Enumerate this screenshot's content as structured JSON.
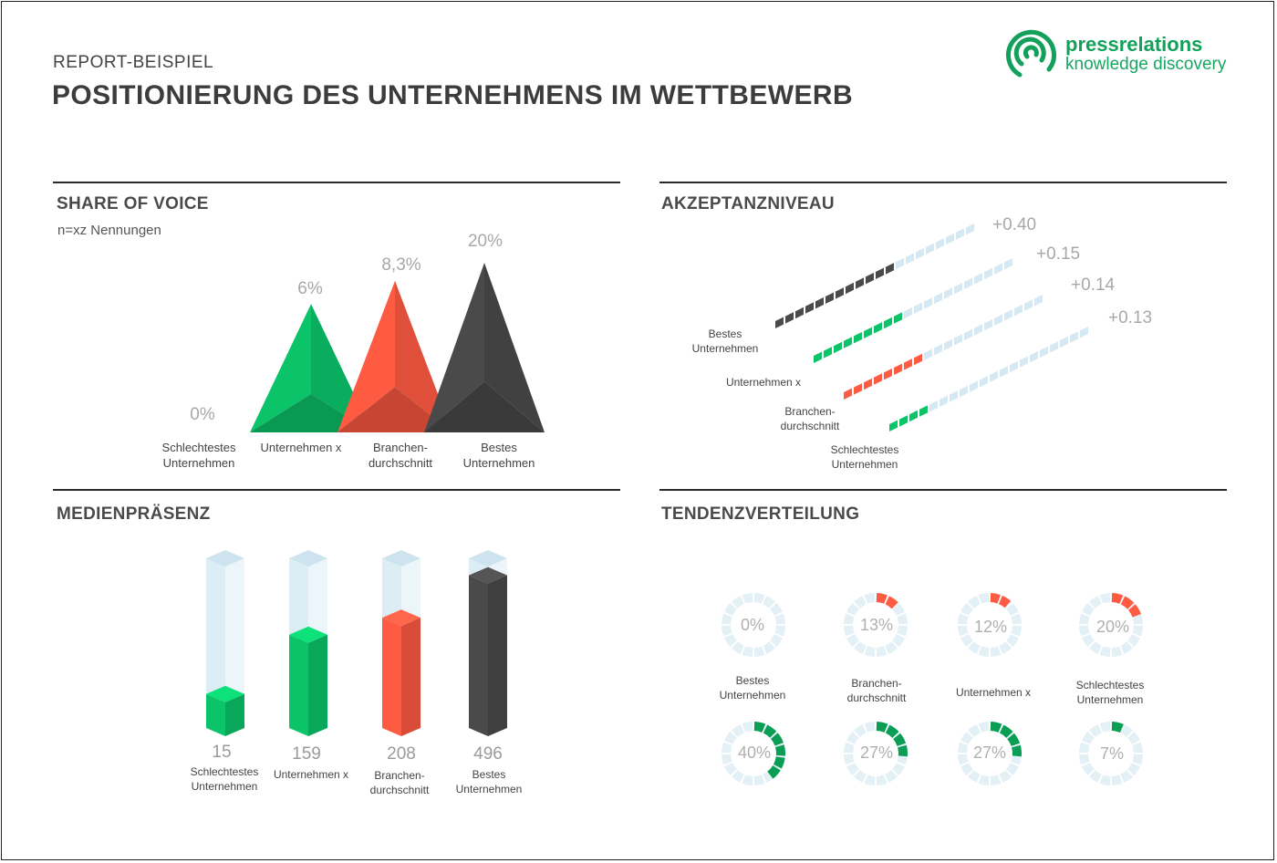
{
  "header": {
    "kicker": "REPORT-BEISPIEL",
    "title": "POSITIONIERUNG DES UNTERNEHMENS IM WETTBEWERB",
    "logo_name": "pressrelations",
    "logo_sub": "knowledge discovery",
    "logo_icon": "pressrelations-logo-icon"
  },
  "colors": {
    "green": "#0bc46a",
    "green_dark": "#0a9e55",
    "red": "#ff5a42",
    "red_dark": "#e0391f",
    "black": "#4a4a4a",
    "black_dark": "#2e2e2e",
    "light": "#d4e9f3"
  },
  "sections": {
    "share_of_voice": "SHARE OF VOICE",
    "share_note": "n=xz Nennungen",
    "akzeptanz": "AKZEPTANZNIVEAU",
    "medien": "MEDIENPRÄSENZ",
    "tendenz": "TENDENZVERTEILUNG"
  },
  "chart_data": [
    {
      "type": "bar",
      "title": "SHARE OF VOICE",
      "subtitle": "n=xz Nennungen",
      "categories": [
        "Schlechtestes\nUnternehmen",
        "Unternehmen  x",
        "Branchen-\ndurchschnitt",
        "Bestes\nUnternehmen"
      ],
      "values": [
        0,
        6,
        8.3,
        20
      ],
      "value_labels": [
        "0%",
        "6%",
        "8,3%",
        "20%"
      ],
      "unit": "%",
      "colors": [
        "#0bc46a",
        "#0bc46a",
        "#ff5a42",
        "#4a4a4a"
      ]
    },
    {
      "type": "bar",
      "title": "AKZEPTANZNIVEAU",
      "categories": [
        "Bestes\nUnternehmen",
        "Unternehmen  x",
        "Branchen-\ndurchschnitt",
        "Schlechtestes\nUnternehmen"
      ],
      "values": [
        0.4,
        0.15,
        0.14,
        0.13
      ],
      "value_labels": [
        "+0.40",
        "+0.15",
        "+0.14",
        "+0.13"
      ],
      "filled_segments": [
        12,
        9,
        8,
        4
      ],
      "total_segments": 20,
      "colors": [
        "#4a4a4a",
        "#0bc46a",
        "#ff5a42",
        "#0bc46a"
      ]
    },
    {
      "type": "bar",
      "title": "MEDIENPRÄSENZ",
      "categories": [
        "Schlechtestes\nUnternehmen",
        "Unternehmen  x",
        "Branchen-\ndurchschnitt",
        "Bestes\nUnternehmen"
      ],
      "values": [
        15,
        159,
        208,
        496
      ],
      "value_labels": [
        "15",
        "159",
        "208",
        "496"
      ],
      "fill_fraction": [
        0.2,
        0.55,
        0.65,
        0.9
      ],
      "colors": [
        "#0bc46a",
        "#0bc46a",
        "#ff5a42",
        "#4a4a4a"
      ]
    },
    {
      "type": "pie",
      "title": "TENDENZVERTEILUNG",
      "categories": [
        "Bestes\nUnternehmen",
        "Branchen-\ndurchschnitt",
        "Unternehmen  x",
        "Schlechtestes\nUnternehmen"
      ],
      "series": [
        {
          "name": "",
          "values": [
            0,
            13,
            12,
            20
          ],
          "value_labels": [
            "0%",
            "13%",
            "12%",
            "20%"
          ],
          "color": "#ff5a42"
        },
        {
          "name": "",
          "values": [
            40,
            27,
            27,
            7
          ],
          "value_labels": [
            "40%",
            "27%",
            "27%",
            "7%"
          ],
          "color": "#0a9e55"
        }
      ]
    }
  ]
}
